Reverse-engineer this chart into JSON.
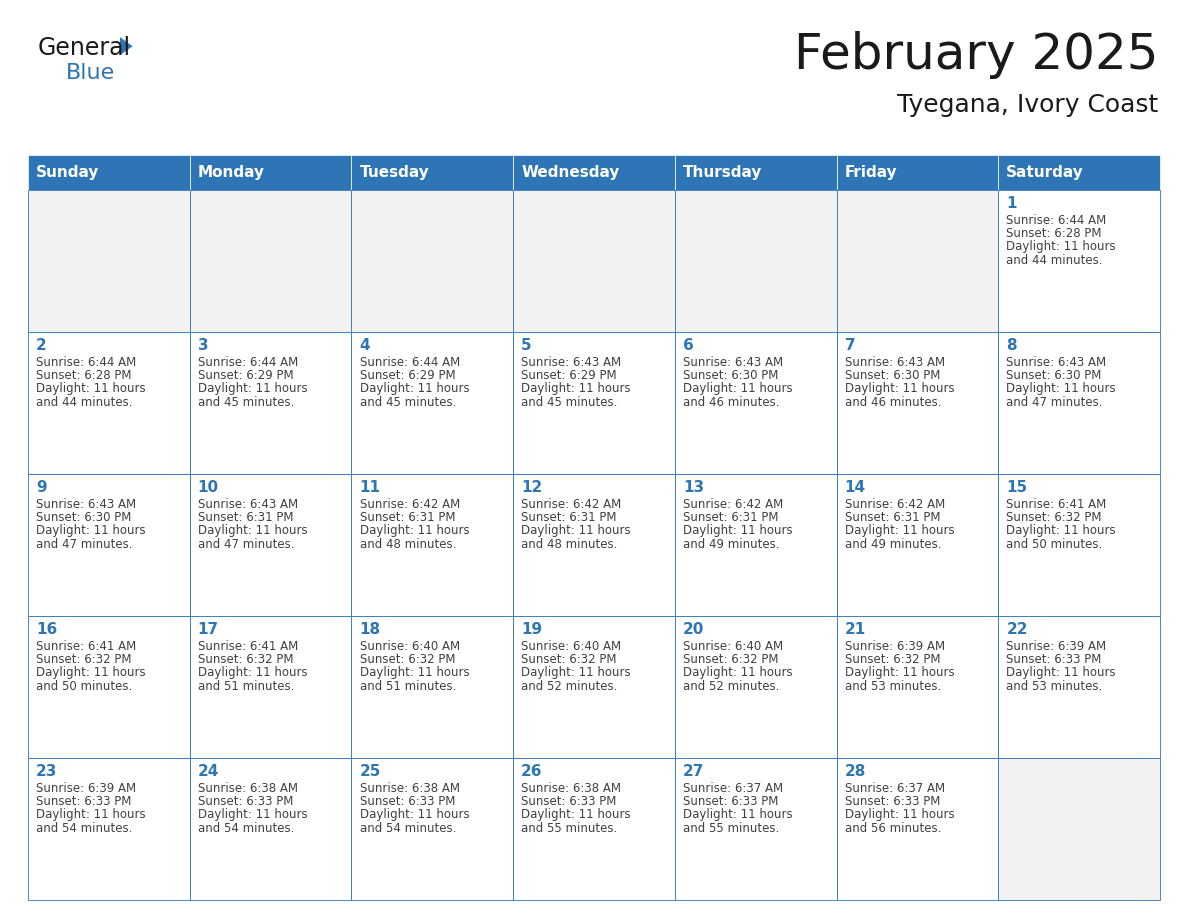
{
  "title": "February 2025",
  "subtitle": "Tyegana, Ivory Coast",
  "header_bg": "#2E75B6",
  "header_text_color": "#FFFFFF",
  "cell_bg": "#FFFFFF",
  "cell_bg_empty_row1": "#F2F2F2",
  "cell_border_color": "#2E75B6",
  "day_number_color": "#2E75B6",
  "cell_text_color": "#404040",
  "days_of_week": [
    "Sunday",
    "Monday",
    "Tuesday",
    "Wednesday",
    "Thursday",
    "Friday",
    "Saturday"
  ],
  "logo_general_color": "#1a1a1a",
  "logo_blue_color": "#2E75B6",
  "title_fontsize": 36,
  "subtitle_fontsize": 18,
  "header_fontsize": 11,
  "day_num_fontsize": 11,
  "cell_text_fontsize": 8.5,
  "calendar_data": [
    [
      null,
      null,
      null,
      null,
      null,
      null,
      {
        "day": 1,
        "sunrise": "6:44 AM",
        "sunset": "6:28 PM",
        "daylight_hours": 11,
        "daylight_minutes": 44
      }
    ],
    [
      {
        "day": 2,
        "sunrise": "6:44 AM",
        "sunset": "6:28 PM",
        "daylight_hours": 11,
        "daylight_minutes": 44
      },
      {
        "day": 3,
        "sunrise": "6:44 AM",
        "sunset": "6:29 PM",
        "daylight_hours": 11,
        "daylight_minutes": 45
      },
      {
        "day": 4,
        "sunrise": "6:44 AM",
        "sunset": "6:29 PM",
        "daylight_hours": 11,
        "daylight_minutes": 45
      },
      {
        "day": 5,
        "sunrise": "6:43 AM",
        "sunset": "6:29 PM",
        "daylight_hours": 11,
        "daylight_minutes": 45
      },
      {
        "day": 6,
        "sunrise": "6:43 AM",
        "sunset": "6:30 PM",
        "daylight_hours": 11,
        "daylight_minutes": 46
      },
      {
        "day": 7,
        "sunrise": "6:43 AM",
        "sunset": "6:30 PM",
        "daylight_hours": 11,
        "daylight_minutes": 46
      },
      {
        "day": 8,
        "sunrise": "6:43 AM",
        "sunset": "6:30 PM",
        "daylight_hours": 11,
        "daylight_minutes": 47
      }
    ],
    [
      {
        "day": 9,
        "sunrise": "6:43 AM",
        "sunset": "6:30 PM",
        "daylight_hours": 11,
        "daylight_minutes": 47
      },
      {
        "day": 10,
        "sunrise": "6:43 AM",
        "sunset": "6:31 PM",
        "daylight_hours": 11,
        "daylight_minutes": 47
      },
      {
        "day": 11,
        "sunrise": "6:42 AM",
        "sunset": "6:31 PM",
        "daylight_hours": 11,
        "daylight_minutes": 48
      },
      {
        "day": 12,
        "sunrise": "6:42 AM",
        "sunset": "6:31 PM",
        "daylight_hours": 11,
        "daylight_minutes": 48
      },
      {
        "day": 13,
        "sunrise": "6:42 AM",
        "sunset": "6:31 PM",
        "daylight_hours": 11,
        "daylight_minutes": 49
      },
      {
        "day": 14,
        "sunrise": "6:42 AM",
        "sunset": "6:31 PM",
        "daylight_hours": 11,
        "daylight_minutes": 49
      },
      {
        "day": 15,
        "sunrise": "6:41 AM",
        "sunset": "6:32 PM",
        "daylight_hours": 11,
        "daylight_minutes": 50
      }
    ],
    [
      {
        "day": 16,
        "sunrise": "6:41 AM",
        "sunset": "6:32 PM",
        "daylight_hours": 11,
        "daylight_minutes": 50
      },
      {
        "day": 17,
        "sunrise": "6:41 AM",
        "sunset": "6:32 PM",
        "daylight_hours": 11,
        "daylight_minutes": 51
      },
      {
        "day": 18,
        "sunrise": "6:40 AM",
        "sunset": "6:32 PM",
        "daylight_hours": 11,
        "daylight_minutes": 51
      },
      {
        "day": 19,
        "sunrise": "6:40 AM",
        "sunset": "6:32 PM",
        "daylight_hours": 11,
        "daylight_minutes": 52
      },
      {
        "day": 20,
        "sunrise": "6:40 AM",
        "sunset": "6:32 PM",
        "daylight_hours": 11,
        "daylight_minutes": 52
      },
      {
        "day": 21,
        "sunrise": "6:39 AM",
        "sunset": "6:32 PM",
        "daylight_hours": 11,
        "daylight_minutes": 53
      },
      {
        "day": 22,
        "sunrise": "6:39 AM",
        "sunset": "6:33 PM",
        "daylight_hours": 11,
        "daylight_minutes": 53
      }
    ],
    [
      {
        "day": 23,
        "sunrise": "6:39 AM",
        "sunset": "6:33 PM",
        "daylight_hours": 11,
        "daylight_minutes": 54
      },
      {
        "day": 24,
        "sunrise": "6:38 AM",
        "sunset": "6:33 PM",
        "daylight_hours": 11,
        "daylight_minutes": 54
      },
      {
        "day": 25,
        "sunrise": "6:38 AM",
        "sunset": "6:33 PM",
        "daylight_hours": 11,
        "daylight_minutes": 54
      },
      {
        "day": 26,
        "sunrise": "6:38 AM",
        "sunset": "6:33 PM",
        "daylight_hours": 11,
        "daylight_minutes": 55
      },
      {
        "day": 27,
        "sunrise": "6:37 AM",
        "sunset": "6:33 PM",
        "daylight_hours": 11,
        "daylight_minutes": 55
      },
      {
        "day": 28,
        "sunrise": "6:37 AM",
        "sunset": "6:33 PM",
        "daylight_hours": 11,
        "daylight_minutes": 56
      },
      null
    ]
  ]
}
